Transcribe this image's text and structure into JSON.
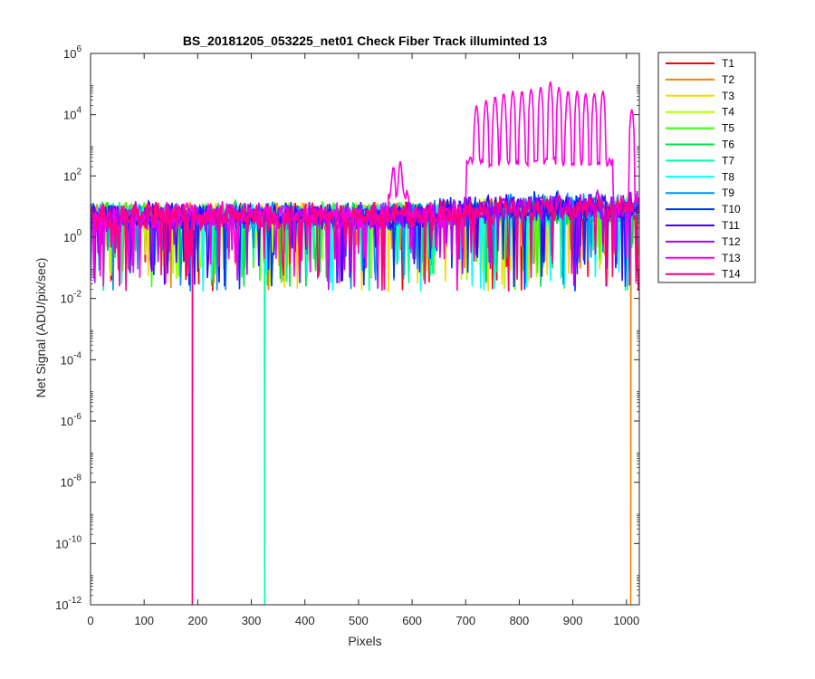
{
  "chart_data": {
    "type": "line",
    "title": "BS_20181205_053225_net01   Check Fiber     Track illuminted 13",
    "xlabel": "Pixels",
    "ylabel": "Net Signal (ADU/pix/sec)",
    "xlim": [
      0,
      1024
    ],
    "ylim_log10": [
      -12,
      6
    ],
    "yscale": "log",
    "grid": false,
    "legend_position": "outside-top-right",
    "x_ticks": [
      0,
      100,
      200,
      300,
      400,
      500,
      600,
      700,
      800,
      900,
      1000
    ],
    "y_ticks": [
      {
        "base": "10",
        "exp": "-12"
      },
      {
        "base": "10",
        "exp": "-10"
      },
      {
        "base": "10",
        "exp": "-8"
      },
      {
        "base": "10",
        "exp": "-6"
      },
      {
        "base": "10",
        "exp": "-4"
      },
      {
        "base": "10",
        "exp": "-2"
      },
      {
        "base": "10",
        "exp": "0"
      },
      {
        "base": "10",
        "exp": "2"
      },
      {
        "base": "10",
        "exp": "4"
      },
      {
        "base": "10",
        "exp": "6"
      }
    ],
    "series": [
      {
        "name": "T1",
        "color": "#ff0000"
      },
      {
        "name": "T2",
        "color": "#ff7f00"
      },
      {
        "name": "T3",
        "color": "#ffd700"
      },
      {
        "name": "T4",
        "color": "#b0ff00"
      },
      {
        "name": "T5",
        "color": "#33ff00"
      },
      {
        "name": "T6",
        "color": "#00e040"
      },
      {
        "name": "T7",
        "color": "#00ffa0"
      },
      {
        "name": "T8",
        "color": "#00ffff"
      },
      {
        "name": "T9",
        "color": "#0090ff"
      },
      {
        "name": "T10",
        "color": "#0030ff"
      },
      {
        "name": "T11",
        "color": "#4000ff"
      },
      {
        "name": "T12",
        "color": "#b000ff"
      },
      {
        "name": "T13",
        "color": "#ff00dd"
      },
      {
        "name": "T14",
        "color": "#ff0080"
      }
    ],
    "notable_features": [
      {
        "series": "T14",
        "x": 190,
        "y": 1e-12
      },
      {
        "series": "T7",
        "x": 325,
        "y": 1e-12
      },
      {
        "series": "T2",
        "x": 1008,
        "y": 1e-12
      }
    ],
    "t13_peaks": [
      {
        "x": 565,
        "y": 200
      },
      {
        "x": 578,
        "y": 300
      },
      {
        "x": 720,
        "y": 20000
      },
      {
        "x": 738,
        "y": 30000
      },
      {
        "x": 755,
        "y": 40000
      },
      {
        "x": 771,
        "y": 50000
      },
      {
        "x": 788,
        "y": 60000
      },
      {
        "x": 805,
        "y": 60000
      },
      {
        "x": 822,
        "y": 70000
      },
      {
        "x": 840,
        "y": 80000
      },
      {
        "x": 858,
        "y": 120000
      },
      {
        "x": 874,
        "y": 80000
      },
      {
        "x": 891,
        "y": 60000
      },
      {
        "x": 908,
        "y": 60000
      },
      {
        "x": 924,
        "y": 50000
      },
      {
        "x": 940,
        "y": 50000
      },
      {
        "x": 956,
        "y": 60000
      },
      {
        "x": 1010,
        "y": 15000
      }
    ]
  }
}
